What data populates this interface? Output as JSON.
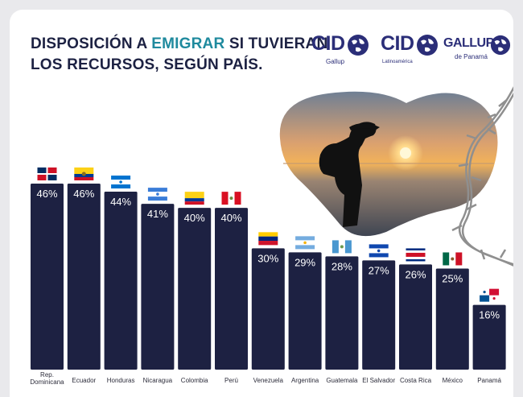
{
  "title": {
    "line1_before": "DISPOSICIÓN A ",
    "line1_highlight": "EMIGRAR",
    "line1_after": " SI TUVIERAN",
    "line2": "LOS RECURSOS, SEGÚN PAÍS."
  },
  "logos": [
    {
      "word": "CID",
      "sub": "Gallup",
      "icon": "globe-icon"
    },
    {
      "word": "CID",
      "sub": "Latinoamérica",
      "icon": "globe-icon"
    },
    {
      "word": "GALLUP",
      "sub": "de Panamá",
      "icon": "globe-icon"
    }
  ],
  "colors": {
    "bar": "#1d2142",
    "title": "#1d2243",
    "highlight": "#1f8a9e",
    "background": "#ffffff"
  },
  "chart_data": {
    "type": "bar",
    "categories": [
      "Rep. Dominicana",
      "Ecuador",
      "Honduras",
      "Nicaragua",
      "Colombia",
      "Perú",
      "Venezuela",
      "Argentina",
      "Guatemala",
      "El Salvador",
      "Costa Rica",
      "México",
      "Panamá"
    ],
    "values": [
      46,
      46,
      44,
      41,
      40,
      40,
      30,
      29,
      28,
      27,
      26,
      25,
      16
    ],
    "value_labels": [
      "46%",
      "46%",
      "44%",
      "41%",
      "40%",
      "40%",
      "30%",
      "29%",
      "28%",
      "27%",
      "26%",
      "25%",
      "16%"
    ],
    "value_suffix": "%",
    "flags": [
      "flag-dominican-republic-icon",
      "flag-ecuador-icon",
      "flag-honduras-icon",
      "flag-nicaragua-icon",
      "flag-colombia-icon",
      "flag-peru-icon",
      "flag-venezuela-icon",
      "flag-argentina-icon",
      "flag-guatemala-icon",
      "flag-el-salvador-icon",
      "flag-costa-rica-icon",
      "flag-mexico-icon",
      "flag-panama-icon"
    ],
    "title": "DISPOSICIÓN A EMIGRAR SI TUVIERAN LOS RECURSOS, SEGÚN PAÍS.",
    "ylim": [
      0,
      46
    ],
    "grid": false,
    "legend": "none"
  }
}
